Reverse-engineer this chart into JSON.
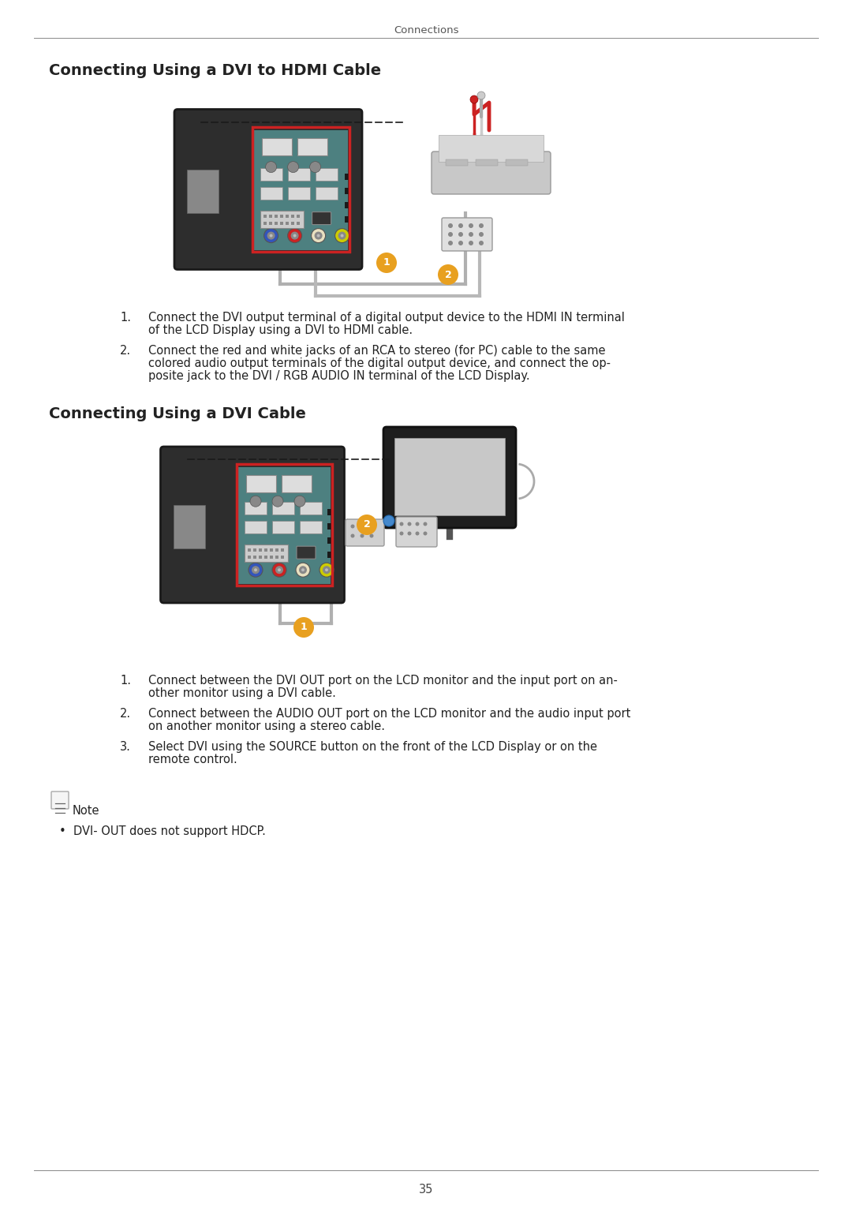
{
  "page_title": "Connections",
  "section1_title": "Connecting Using a DVI to HDMI Cable",
  "section2_title": "Connecting Using a DVI Cable",
  "section1_items": [
    [
      "Connect the DVI output terminal of a digital output device to the HDMI IN terminal",
      "of the LCD Display using a DVI to HDMI cable."
    ],
    [
      "Connect the red and white jacks of an RCA to stereo (for PC) cable to the same",
      "colored audio output terminals of the digital output device, and connect the op-",
      "posite jack to the DVI / RGB AUDIO IN terminal of the LCD Display."
    ]
  ],
  "section2_items": [
    [
      "Connect between the DVI OUT port on the LCD monitor and the input port on an-",
      "other monitor using a DVI cable."
    ],
    [
      "Connect between the AUDIO OUT port on the LCD monitor and the audio input port",
      "on another monitor using a stereo cable."
    ],
    [
      "Select DVI using the SOURCE button on the front of the LCD Display or on the",
      "remote control."
    ]
  ],
  "note_text": "Note",
  "note_bullet": "DVI- OUT does not support HDCP.",
  "page_number": "35",
  "bg_color": "#ffffff",
  "text_color": "#222222",
  "gray_line_color": "#aaaaaa",
  "section_title_font": 14,
  "body_font": 10.5,
  "header_font": 9.5,
  "monitor_dark": "#2d2d2d",
  "monitor_darker": "#1e1e1e",
  "monitor_panel": "#4a7a7a",
  "red_box": "#cc0000",
  "cable_gray": "#b0b0b0",
  "badge_orange": "#e8a020",
  "rca_colors": [
    "#3366cc",
    "#cc3333",
    "#e8e0c0",
    "#ddcc00",
    "#33aa33"
  ]
}
